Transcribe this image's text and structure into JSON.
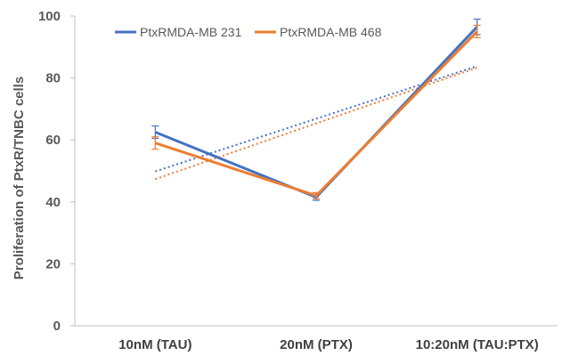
{
  "chart_data": {
    "type": "line",
    "categories": [
      "10nM (TAU)",
      "20nM (PTX)",
      "10:20nM (TAU:PTX)"
    ],
    "series": [
      {
        "name": "PtxRMDA-MB 231",
        "values": [
          62.5,
          41.5,
          96.5
        ],
        "errors": [
          2.0,
          1.0,
          2.5
        ],
        "color": "#4472C4"
      },
      {
        "name": "PtxRMDA-MB 468",
        "values": [
          59.0,
          42.0,
          95.0
        ],
        "errors": [
          2.0,
          1.0,
          2.0
        ],
        "color": "#ED7D31"
      }
    ],
    "trendlines": {
      "style": "dotted-linear",
      "series": [
        "PtxRMDA-MB 231",
        "PtxRMDA-MB 468"
      ]
    },
    "ylabel": "Proliferation of PtxR/TNBC cells",
    "xlabel": "",
    "ylim": [
      0,
      100
    ],
    "yticks": [
      0,
      20,
      40,
      60,
      80,
      100
    ],
    "legend": "top-left",
    "grid": false
  }
}
